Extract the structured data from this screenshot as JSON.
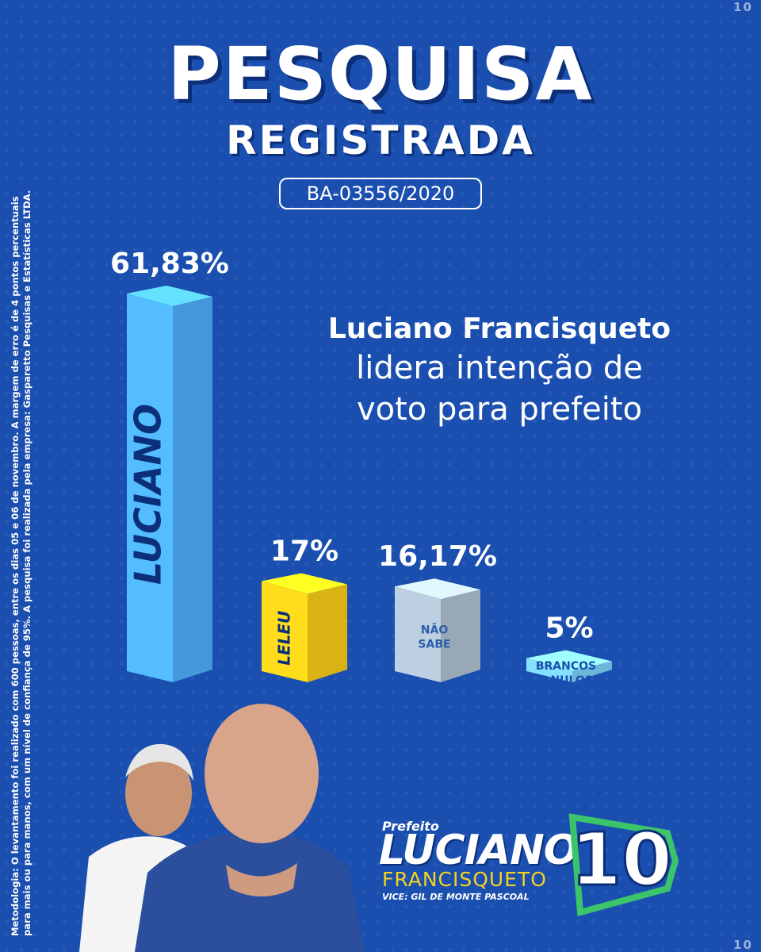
{
  "header": {
    "title": "PESQUISA",
    "subtitle": "REGISTRADA",
    "registration": "BA-03556/2020"
  },
  "headline": {
    "line1": "Luciano Francisqueto",
    "line2": "lidera intenção de",
    "line3": "voto para prefeito"
  },
  "methodology": {
    "line1": "Metodologia: O levantamento foi realizado com 600 pessoas, entre os dias 05 e 06 de novembro. A margem de erro é de 4 pontos percentuais",
    "line2": "para mais ou para manos, com um nível de confiança de 95%. A pesquisa foi realizada pela empresa: Gasparetto Pesquisas e Estatísticas LTDA."
  },
  "decor": {
    "pattern_text": "10"
  },
  "logo": {
    "prefix": "Prefeito",
    "name": "LUCIANO",
    "surname": "FRANCISQUETO",
    "vice": "VICE: GIL DE MONTE PASCOAL",
    "number": "10"
  },
  "chart_data": {
    "type": "bar",
    "categories": [
      "LUCIANO",
      "LELEU",
      "NÃO SABE",
      "BRANCOS E NULOS"
    ],
    "values": [
      61.83,
      17,
      16.17,
      5
    ],
    "value_labels": [
      "61,83%",
      "17%",
      "16,17%",
      "5%"
    ],
    "colors": [
      "#4fb4ff",
      "#ffd21a",
      "#b4c6d6",
      "#7fd7ff"
    ],
    "label_colors": [
      "#0c2f7a",
      "#0c2f7a",
      "#2a5ea8",
      "#1a4fb0"
    ],
    "ylim": [
      0,
      61.83
    ]
  }
}
